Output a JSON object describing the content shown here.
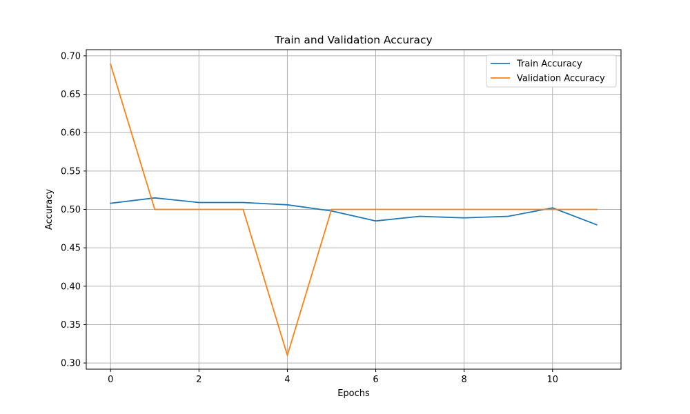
{
  "chart_data": {
    "type": "line",
    "title": "Train and Validation Accuracy",
    "xlabel": "Epochs",
    "ylabel": "Accuracy",
    "x": [
      0,
      1,
      2,
      3,
      4,
      5,
      6,
      7,
      8,
      9,
      10,
      11
    ],
    "xlim": [
      -0.55,
      11.55
    ],
    "ylim": [
      0.292,
      0.708
    ],
    "xticks": [
      0,
      2,
      4,
      6,
      8,
      10
    ],
    "yticks": [
      0.3,
      0.35,
      0.4,
      0.45,
      0.5,
      0.55,
      0.6,
      0.65,
      0.7
    ],
    "xtick_labels": [
      "0",
      "2",
      "4",
      "6",
      "8",
      "10"
    ],
    "ytick_labels": [
      "0.30",
      "0.35",
      "0.40",
      "0.45",
      "0.50",
      "0.55",
      "0.60",
      "0.65",
      "0.70"
    ],
    "grid": true,
    "legend_position": "top-right",
    "series": [
      {
        "name": "Train Accuracy",
        "color": "#1f77b4",
        "values": [
          0.508,
          0.515,
          0.509,
          0.509,
          0.506,
          0.498,
          0.485,
          0.491,
          0.489,
          0.491,
          0.502,
          0.48
        ]
      },
      {
        "name": "Validation Accuracy",
        "color": "#ff7f0e",
        "values": [
          0.689,
          0.5,
          0.5,
          0.5,
          0.31,
          0.5,
          0.5,
          0.5,
          0.5,
          0.5,
          0.5,
          0.5
        ]
      }
    ]
  }
}
